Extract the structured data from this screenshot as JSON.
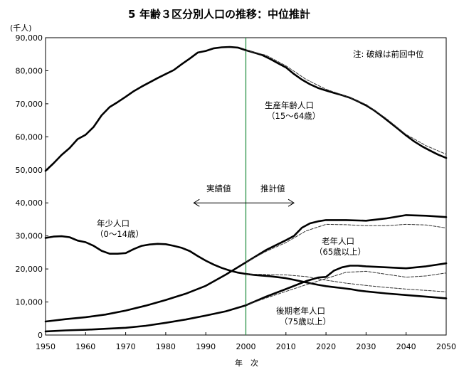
{
  "chart_data": {
    "type": "line",
    "title": "年齢３区分別人口の推移：中位推計",
    "title_prefix": "5",
    "ylabel": "(千人)",
    "xlabel": "年　次",
    "xlim": [
      1950,
      2050
    ],
    "ylim": [
      0,
      90000
    ],
    "x_ticks": [
      1950,
      1960,
      1970,
      1980,
      1990,
      2000,
      2010,
      2020,
      2030,
      2040,
      2050
    ],
    "y_ticks": [
      0,
      10000,
      20000,
      30000,
      40000,
      50000,
      60000,
      70000,
      80000,
      90000
    ],
    "y_tick_labels": [
      "0",
      "10,000",
      "20,000",
      "30,000",
      "40,000",
      "50,000",
      "60,000",
      "70,000",
      "80,000",
      "90,000"
    ],
    "grid": false,
    "note": "注: 破線は前回中位",
    "vertical_line": {
      "x": 2000,
      "color": "#1a8a3a"
    },
    "arrow": {
      "from": 1987,
      "to": 2012,
      "y": 40000,
      "label_left": "実績値",
      "label_right": "推計値"
    },
    "series": [
      {
        "name": "生産年齢人口",
        "sublabel": "（15～64歳）",
        "style": "solid",
        "x": [
          1950,
          1952,
          1954,
          1956,
          1958,
          1960,
          1962,
          1964,
          1966,
          1968,
          1970,
          1972,
          1974,
          1976,
          1978,
          1980,
          1982,
          1984,
          1986,
          1988,
          1990,
          1992,
          1994,
          1996,
          1998,
          2000,
          2002,
          2004,
          2006,
          2008,
          2010,
          2012,
          2014,
          2016,
          2018,
          2020,
          2022,
          2024,
          2026,
          2028,
          2030,
          2032,
          2034,
          2036,
          2038,
          2040,
          2042,
          2044,
          2046,
          2048,
          2050
        ],
        "values": [
          49700,
          52000,
          54500,
          56600,
          59300,
          60600,
          63000,
          66500,
          69000,
          70500,
          72100,
          73800,
          75200,
          76500,
          77800,
          79000,
          80200,
          82000,
          83700,
          85500,
          86000,
          86800,
          87100,
          87200,
          87000,
          86200,
          85500,
          84800,
          83600,
          82300,
          81000,
          79000,
          77300,
          75900,
          74800,
          74000,
          73300,
          72600,
          71800,
          70700,
          69500,
          68000,
          66200,
          64300,
          62400,
          60400,
          58600,
          57100,
          55800,
          54600,
          53600
        ]
      },
      {
        "name": "生産年齢人口（前回中位）",
        "style": "dashed",
        "x": [
          2000,
          2005,
          2010,
          2015,
          2020,
          2025,
          2030,
          2035,
          2040,
          2045,
          2050
        ],
        "values": [
          86200,
          84700,
          81500,
          77400,
          74400,
          72300,
          69800,
          65600,
          60700,
          57300,
          54700
        ]
      },
      {
        "name": "年少人口",
        "sublabel": "（0～14歳）",
        "style": "solid",
        "x": [
          1950,
          1952,
          1954,
          1956,
          1958,
          1960,
          1962,
          1964,
          1966,
          1968,
          1970,
          1972,
          1974,
          1976,
          1978,
          1980,
          1982,
          1984,
          1986,
          1988,
          1990,
          1992,
          1994,
          1996,
          1998,
          2000,
          2002,
          2004,
          2006,
          2008,
          2010,
          2012,
          2014,
          2016,
          2018,
          2020,
          2022,
          2024,
          2026,
          2028,
          2030,
          2035,
          2040,
          2045,
          2050
        ],
        "values": [
          29400,
          29800,
          29900,
          29600,
          28600,
          28100,
          27000,
          25500,
          24600,
          24600,
          24800,
          26000,
          27000,
          27400,
          27600,
          27500,
          27000,
          26400,
          25400,
          23900,
          22500,
          21300,
          20300,
          19500,
          18900,
          18500,
          18200,
          18000,
          17800,
          17500,
          17200,
          16700,
          16200,
          15700,
          15200,
          14800,
          14500,
          14200,
          13900,
          13500,
          13200,
          12600,
          12100,
          11600,
          11100
        ]
      },
      {
        "name": "年少人口（前回中位）",
        "style": "dashed",
        "x": [
          2000,
          2005,
          2010,
          2015,
          2020,
          2025,
          2030,
          2035,
          2040,
          2045,
          2050
        ],
        "values": [
          18500,
          18300,
          18200,
          17700,
          16600,
          15700,
          15000,
          14400,
          13900,
          13500,
          13100
        ]
      },
      {
        "name": "老年人口",
        "sublabel": "（65歳以上）",
        "style": "solid",
        "x": [
          1950,
          1955,
          1960,
          1965,
          1970,
          1975,
          1980,
          1985,
          1990,
          1995,
          2000,
          2005,
          2010,
          2012,
          2014,
          2016,
          2018,
          2020,
          2025,
          2030,
          2035,
          2040,
          2045,
          2050
        ],
        "values": [
          4100,
          4800,
          5400,
          6200,
          7400,
          8900,
          10600,
          12500,
          14900,
          18300,
          22000,
          25700,
          28700,
          30000,
          32500,
          33800,
          34400,
          34800,
          34800,
          34600,
          35300,
          36300,
          36100,
          35700
        ]
      },
      {
        "name": "老年人口（前回中位）",
        "style": "dashed",
        "x": [
          2000,
          2005,
          2010,
          2015,
          2020,
          2025,
          2030,
          2035,
          2040,
          2045,
          2050
        ],
        "values": [
          22000,
          25300,
          28000,
          31500,
          33500,
          33400,
          33100,
          33100,
          33500,
          33300,
          32400
        ]
      },
      {
        "name": "後期老年人口",
        "sublabel": "（75歳以上）",
        "style": "solid",
        "x": [
          1950,
          1955,
          1960,
          1965,
          1970,
          1975,
          1980,
          1985,
          1990,
          1995,
          2000,
          2005,
          2010,
          2015,
          2018,
          2020,
          2022,
          2024,
          2026,
          2028,
          2030,
          2035,
          2040,
          2045,
          2050
        ],
        "values": [
          1100,
          1400,
          1600,
          1900,
          2200,
          2800,
          3700,
          4700,
          5900,
          7200,
          9000,
          11600,
          13900,
          16300,
          17400,
          17600,
          19500,
          20500,
          21000,
          21000,
          20800,
          20500,
          20200,
          20800,
          21700
        ]
      },
      {
        "name": "後期老年人口（前回中位）",
        "style": "dashed",
        "x": [
          2000,
          2005,
          2010,
          2015,
          2020,
          2025,
          2030,
          2035,
          2040,
          2045,
          2050
        ],
        "values": [
          9000,
          11200,
          13200,
          15200,
          17100,
          19000,
          19300,
          18400,
          17500,
          17900,
          18800
        ]
      }
    ]
  }
}
